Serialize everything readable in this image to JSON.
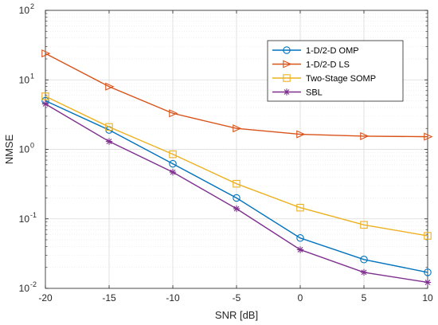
{
  "chart_data": {
    "type": "line",
    "title": "",
    "xlabel": "SNR [dB]",
    "ylabel": "NMSE",
    "x": [
      -20,
      -15,
      -10,
      -5,
      0,
      5,
      10
    ],
    "xlim": [
      -20,
      10
    ],
    "ylim": [
      0.01,
      100
    ],
    "yscale": "log",
    "grid": true,
    "minor_grid": true,
    "legend_position": "top-right",
    "x_tick_labels": [
      "-20",
      "-15",
      "-10",
      "-5",
      "0",
      "5",
      "10"
    ],
    "y_tick_labels": [
      {
        "base": "10",
        "exp": "-2"
      },
      {
        "base": "10",
        "exp": "-1"
      },
      {
        "base": "10",
        "exp": "0"
      },
      {
        "base": "10",
        "exp": "1"
      },
      {
        "base": "10",
        "exp": "2"
      }
    ],
    "series": [
      {
        "name": "1-D/2-D OMP",
        "color": "#0072BD",
        "marker": "circle",
        "values": [
          5.0,
          1.9,
          0.62,
          0.2,
          0.053,
          0.026,
          0.017
        ]
      },
      {
        "name": "1-D/2-D LS",
        "color": "#D95319",
        "marker": "triangle-right",
        "values": [
          24.0,
          8.0,
          3.3,
          2.0,
          1.65,
          1.55,
          1.52
        ]
      },
      {
        "name": "Two-Stage SOMP",
        "color": "#EDB120",
        "marker": "square",
        "values": [
          5.8,
          2.1,
          0.85,
          0.32,
          0.145,
          0.082,
          0.057
        ]
      },
      {
        "name": "SBL",
        "color": "#7E2F8E",
        "marker": "asterisk",
        "values": [
          4.5,
          1.3,
          0.47,
          0.14,
          0.036,
          0.017,
          0.0122
        ]
      }
    ]
  }
}
